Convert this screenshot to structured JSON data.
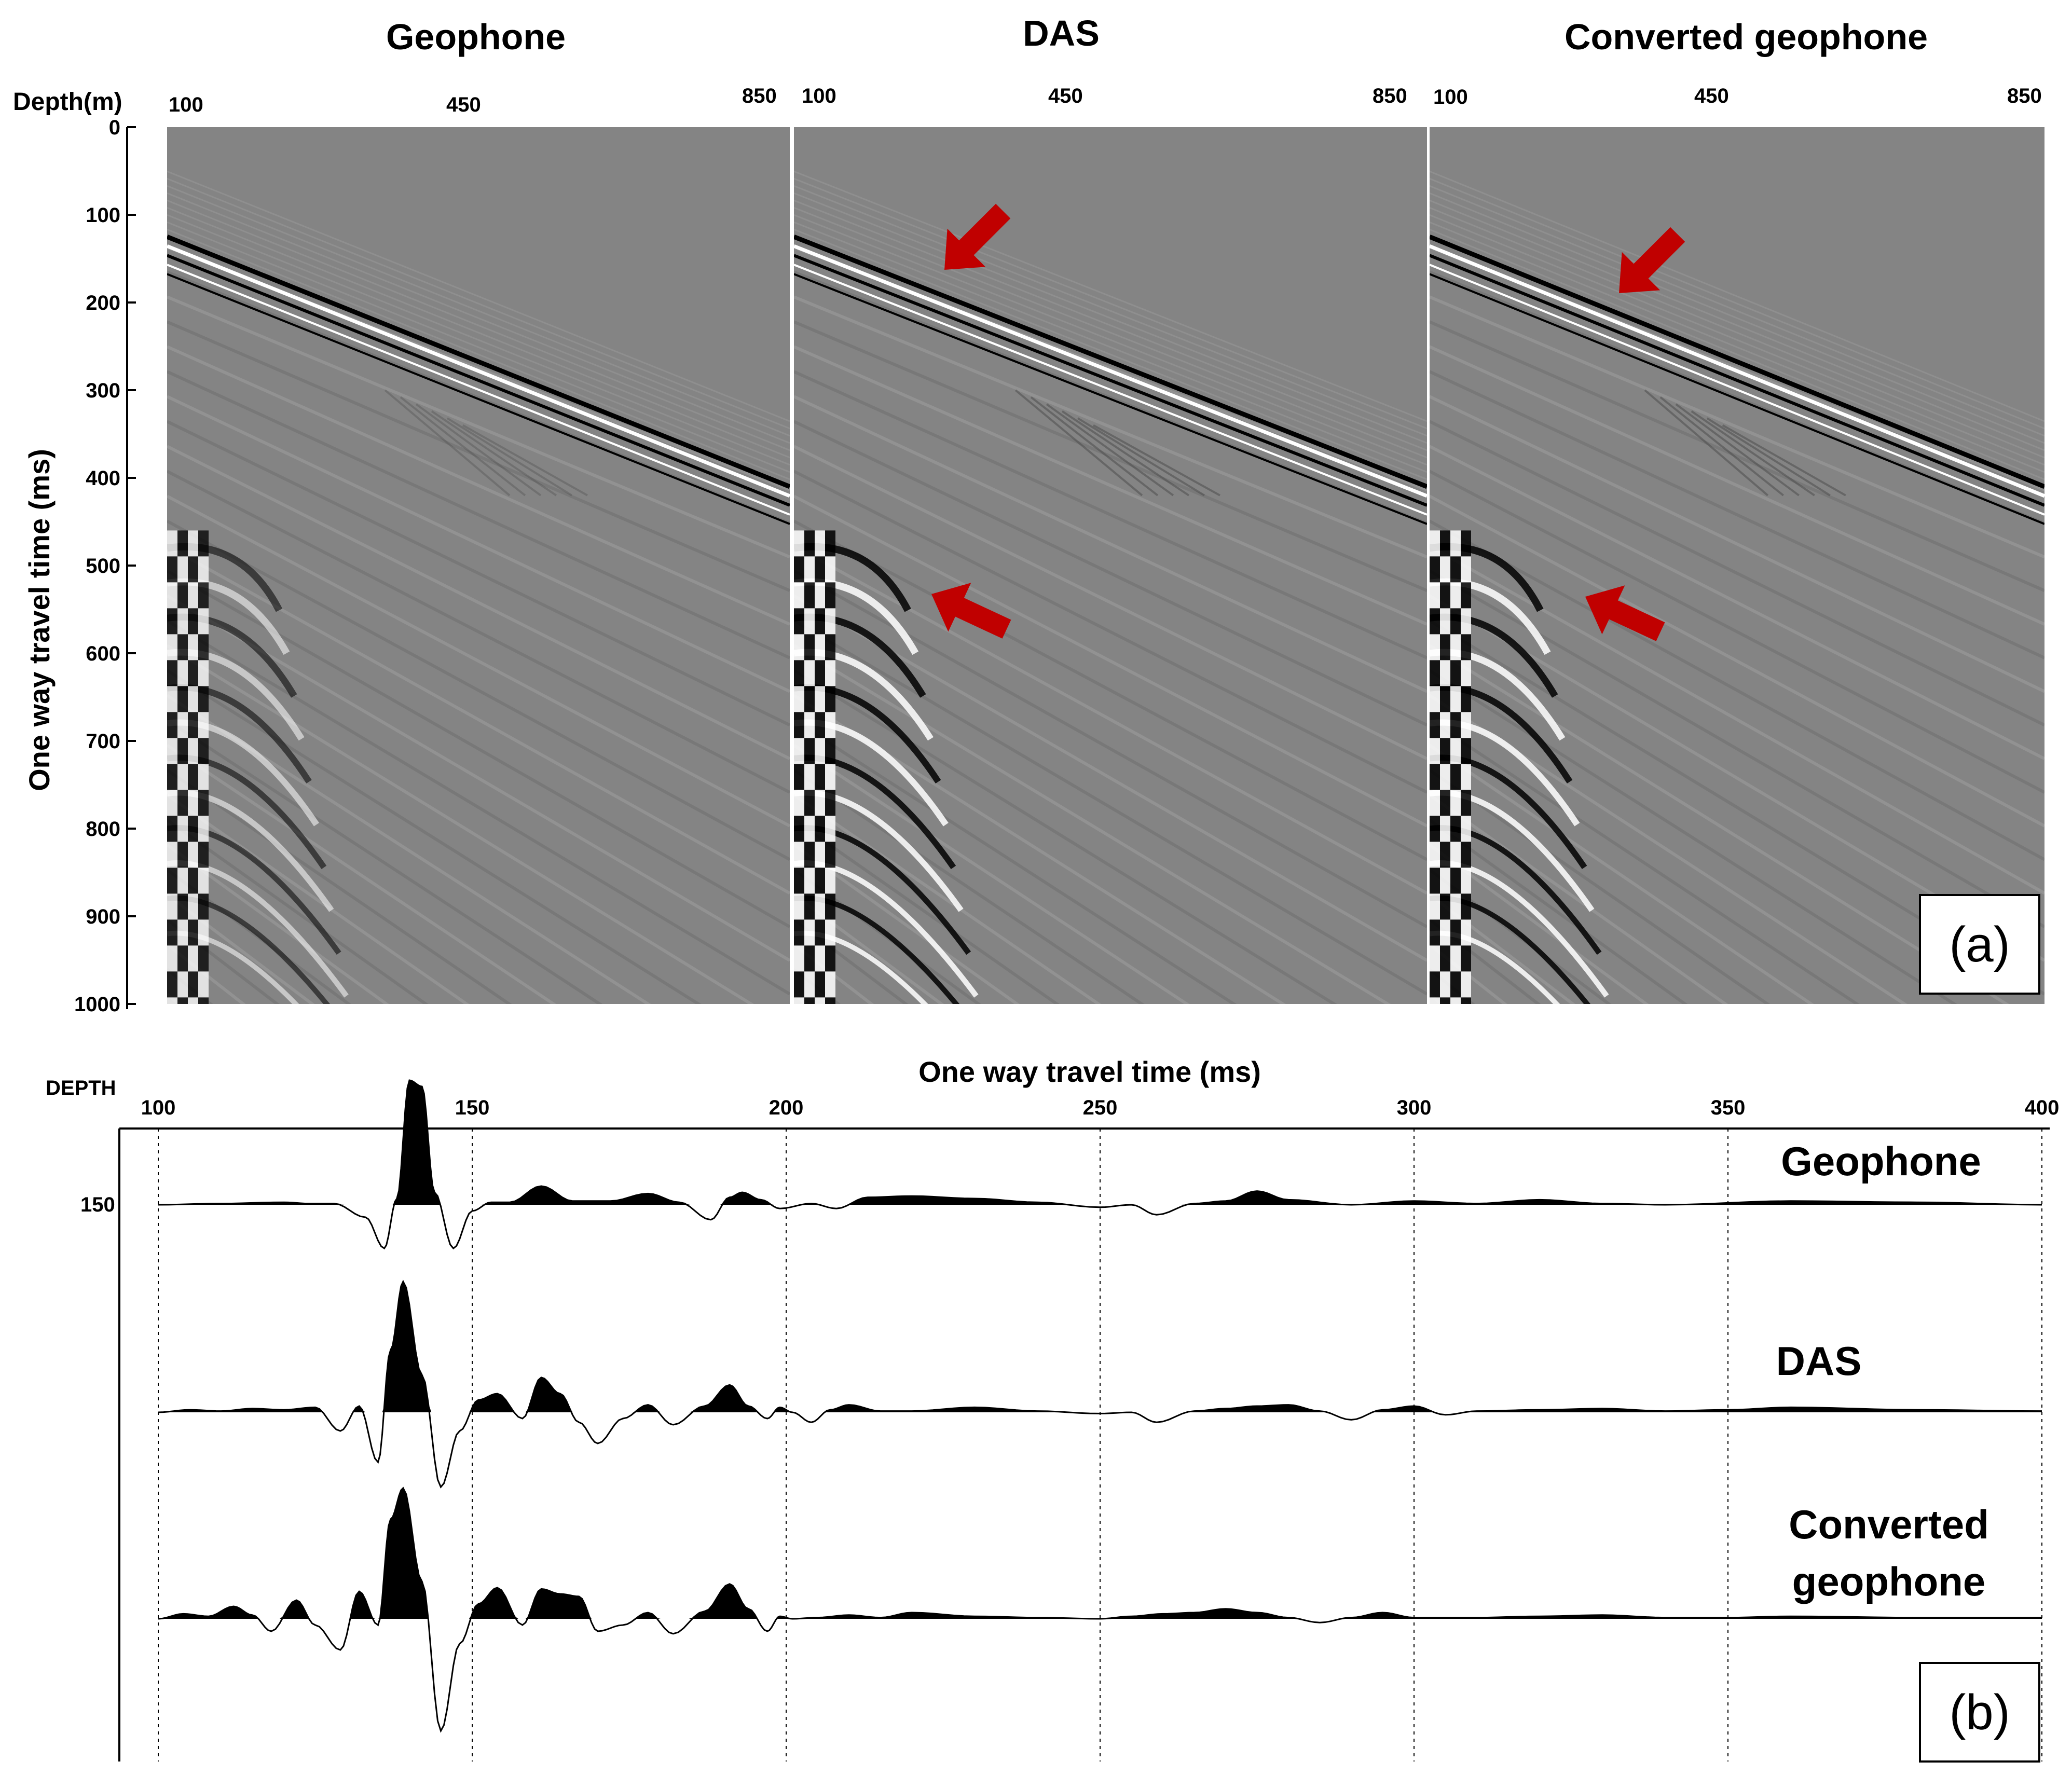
{
  "panel_a": {
    "panel_titles": [
      "Geophone",
      "DAS",
      "Converted geophone"
    ],
    "depth_label": "Depth(m)",
    "depth_ticks": [
      "100",
      "450",
      "850"
    ],
    "y_axis_label": "One way travel time (ms)",
    "y_ticks": [
      "0",
      "100",
      "200",
      "300",
      "400",
      "500",
      "600",
      "700",
      "800",
      "900",
      "1000"
    ],
    "panel_tag": "(a)"
  },
  "panel_b": {
    "depth_header": "DEPTH",
    "depth_value": "150",
    "x_axis_label": "One way travel time (ms)",
    "x_ticks": [
      "100",
      "150",
      "200",
      "250",
      "300",
      "350",
      "400"
    ],
    "trace_labels": [
      "Geophone",
      "DAS",
      "Converted geophone"
    ],
    "panel_tag": "(b)"
  },
  "colors": {
    "seismic_background": "#848484",
    "wiggle_fill": "#000000",
    "arrow": "#c00000",
    "grid": "#000000"
  },
  "chart_data": [
    {
      "type": "heatmap",
      "description_axes": "three VSP seismic sections, depth (m) vs one way travel time (ms)",
      "panels": [
        "Geophone",
        "DAS",
        "Converted geophone"
      ],
      "xlabel": "Depth(m)",
      "ylabel": "One way travel time (ms)",
      "xlim": [
        100,
        850
      ],
      "ylim": [
        0,
        1000
      ],
      "first_break_ms": {
        "depth_100m": 125,
        "depth_850m": 410
      },
      "arrows": [
        {
          "panel": "DAS",
          "target_depth_m": 300,
          "target_time_ms": 160
        },
        {
          "panel": "DAS",
          "target_depth_m": 250,
          "target_time_ms": 530
        },
        {
          "panel": "Converted geophone",
          "target_depth_m": 330,
          "target_time_ms": 185
        },
        {
          "panel": "Converted geophone",
          "target_depth_m": 280,
          "target_time_ms": 535
        }
      ]
    },
    {
      "type": "line",
      "xlabel": "One way travel time (ms)",
      "xlim": [
        100,
        400
      ],
      "grid": true,
      "series": [
        {
          "name": "Geophone",
          "x": [
            100,
            110,
            120,
            124,
            128,
            133,
            136,
            138,
            140,
            142,
            144,
            147,
            150,
            153,
            156,
            161,
            166,
            172,
            178,
            183,
            188,
            191,
            193,
            196,
            199,
            204,
            208,
            213,
            220,
            230,
            240,
            250,
            255,
            259,
            265,
            270,
            275,
            280,
            290,
            300,
            310,
            320,
            330,
            340,
            360,
            380,
            400
          ],
          "y": [
            0,
            0.01,
            0.02,
            0.01,
            0.01,
            -0.1,
            -0.35,
            0.05,
            1.0,
            0.95,
            0.1,
            -0.35,
            -0.05,
            0.02,
            0.02,
            0.15,
            0.03,
            0.03,
            0.09,
            0.02,
            -0.12,
            0.06,
            0.1,
            0.04,
            -0.03,
            0.01,
            -0.03,
            0.06,
            0.07,
            0.05,
            0.02,
            -0.02,
            0,
            -0.08,
            0.01,
            0.03,
            0.11,
            0.04,
            0,
            0.03,
            0.01,
            0.04,
            0.01,
            0,
            0.03,
            0.02,
            0
          ]
        },
        {
          "name": "DAS",
          "x": [
            100,
            105,
            110,
            115,
            120,
            125,
            129,
            132,
            135,
            137,
            139,
            142,
            145,
            148,
            151,
            154,
            158,
            161,
            164,
            167,
            170,
            174,
            178,
            182,
            187,
            191,
            194,
            197,
            199,
            201,
            204,
            207,
            210,
            215,
            220,
            230,
            240,
            250,
            255,
            259,
            265,
            270,
            275,
            280,
            285,
            290,
            295,
            300,
            305,
            310,
            320,
            330,
            340,
            350,
            360,
            380,
            400
          ],
          "y": [
            0,
            0.02,
            0.01,
            0.03,
            0.02,
            0.04,
            -0.15,
            0.05,
            -0.4,
            0.5,
            1.05,
            0.3,
            -0.6,
            -0.15,
            0.1,
            0.15,
            -0.05,
            0.28,
            0.15,
            -0.08,
            -0.25,
            -0.05,
            0.06,
            -0.1,
            0.05,
            0.22,
            0.05,
            -0.05,
            0.04,
            0,
            -0.08,
            0.02,
            0.06,
            0.01,
            0.01,
            0.04,
            0.01,
            -0.01,
            0,
            -0.08,
            0.01,
            0.03,
            0.05,
            0.06,
            0.01,
            -0.06,
            0.02,
            0.05,
            -0.02,
            0.01,
            0.02,
            0.03,
            0.01,
            0.02,
            0.04,
            0.02,
            0.01
          ]
        },
        {
          "name": "Converted geophone",
          "x": [
            100,
            104,
            108,
            112,
            115,
            118,
            122,
            125,
            129,
            132,
            135,
            137,
            139,
            142,
            145,
            148,
            151,
            154,
            158,
            161,
            164,
            167,
            170,
            174,
            178,
            182,
            187,
            191,
            194,
            197,
            199,
            201,
            205,
            210,
            215,
            220,
            230,
            240,
            250,
            255,
            260,
            265,
            270,
            275,
            280,
            285,
            290,
            295,
            300,
            310,
            320,
            330,
            340,
            350,
            360,
            380,
            400
          ],
          "y": [
            0,
            0.04,
            0.02,
            0.1,
            0.03,
            -0.1,
            0.15,
            -0.05,
            -0.25,
            0.22,
            -0.05,
            0.8,
            1.05,
            0.3,
            -0.9,
            -0.2,
            0.12,
            0.25,
            -0.05,
            0.24,
            0.2,
            0.18,
            -0.1,
            -0.05,
            0.05,
            -0.12,
            0.06,
            0.28,
            0.08,
            -0.1,
            0.02,
            0,
            0.01,
            0.03,
            0.01,
            0.05,
            0.02,
            0.01,
            0,
            0.02,
            0.04,
            0.05,
            0.08,
            0.05,
            0.01,
            -0.03,
            0.01,
            0.05,
            0.01,
            0.01,
            0.02,
            0.03,
            0.01,
            0.01,
            0.02,
            0.01,
            0.01
          ]
        }
      ]
    }
  ]
}
